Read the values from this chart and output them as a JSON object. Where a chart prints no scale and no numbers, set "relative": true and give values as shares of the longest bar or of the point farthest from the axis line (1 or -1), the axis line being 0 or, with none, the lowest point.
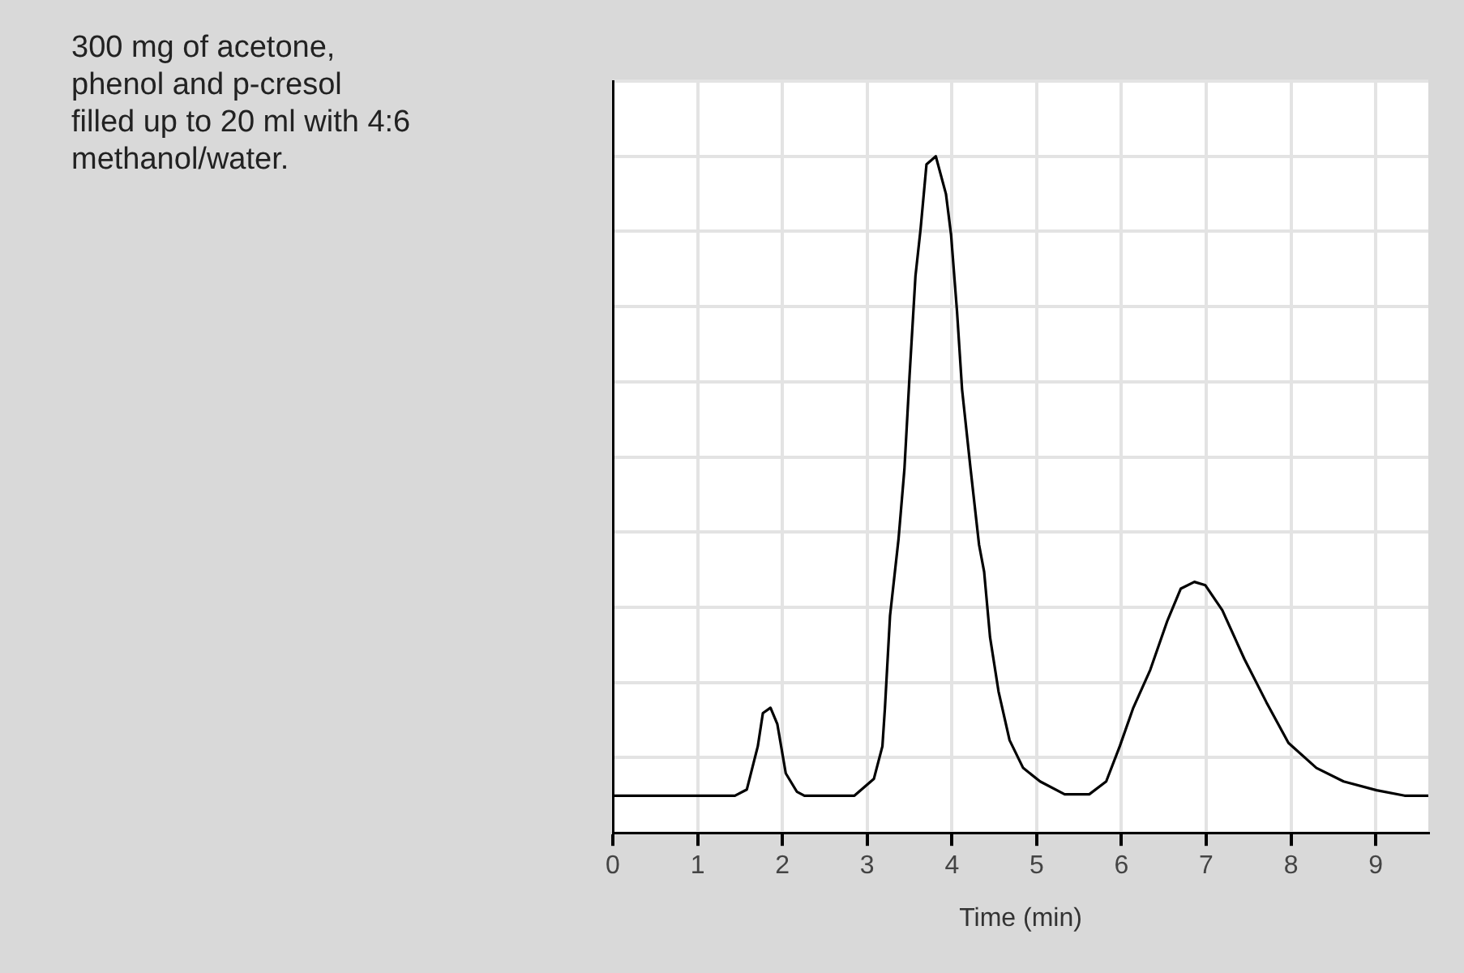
{
  "chart_data": {
    "type": "line",
    "relative": true,
    "xlabel": "Time (min)",
    "annotations": [
      "300 mg of acetone,\nphenol and p-cresol\nfilled up to 20 ml with 4:6\nmethanol/water."
    ],
    "xlim": [
      0,
      9.62
    ],
    "xticks": [
      0,
      1,
      2,
      3,
      4,
      5,
      6,
      7,
      8,
      9
    ],
    "grid": true,
    "legend": false,
    "series": [
      {
        "color": "#000000",
        "x": [
          0,
          1.44,
          1.58,
          1.71,
          1.77,
          1.86,
          1.94,
          2.04,
          2.17,
          2.26,
          2.85,
          3.08,
          3.18,
          3.21,
          3.27,
          3.37,
          3.44,
          3.5,
          3.57,
          3.63,
          3.7,
          3.81,
          3.93,
          3.99,
          4.06,
          4.12,
          4.22,
          4.32,
          4.38,
          4.45,
          4.55,
          4.68,
          4.84,
          5.04,
          5.33,
          5.62,
          5.82,
          5.98,
          6.14,
          6.34,
          6.54,
          6.7,
          6.86,
          6.99,
          7.19,
          7.45,
          7.71,
          7.97,
          8.3,
          8.62,
          9.01,
          9.34,
          9.62
        ],
        "values": [
          0.055,
          0.055,
          0.064,
          0.128,
          0.177,
          0.185,
          0.161,
          0.088,
          0.061,
          0.055,
          0.055,
          0.08,
          0.128,
          0.185,
          0.321,
          0.434,
          0.538,
          0.675,
          0.823,
          0.892,
          0.988,
          1.0,
          0.944,
          0.884,
          0.771,
          0.655,
          0.538,
          0.426,
          0.386,
          0.289,
          0.209,
          0.137,
          0.096,
          0.076,
          0.057,
          0.057,
          0.076,
          0.128,
          0.185,
          0.241,
          0.313,
          0.361,
          0.371,
          0.366,
          0.329,
          0.257,
          0.193,
          0.133,
          0.096,
          0.076,
          0.063,
          0.055,
          0.055
        ]
      }
    ]
  }
}
